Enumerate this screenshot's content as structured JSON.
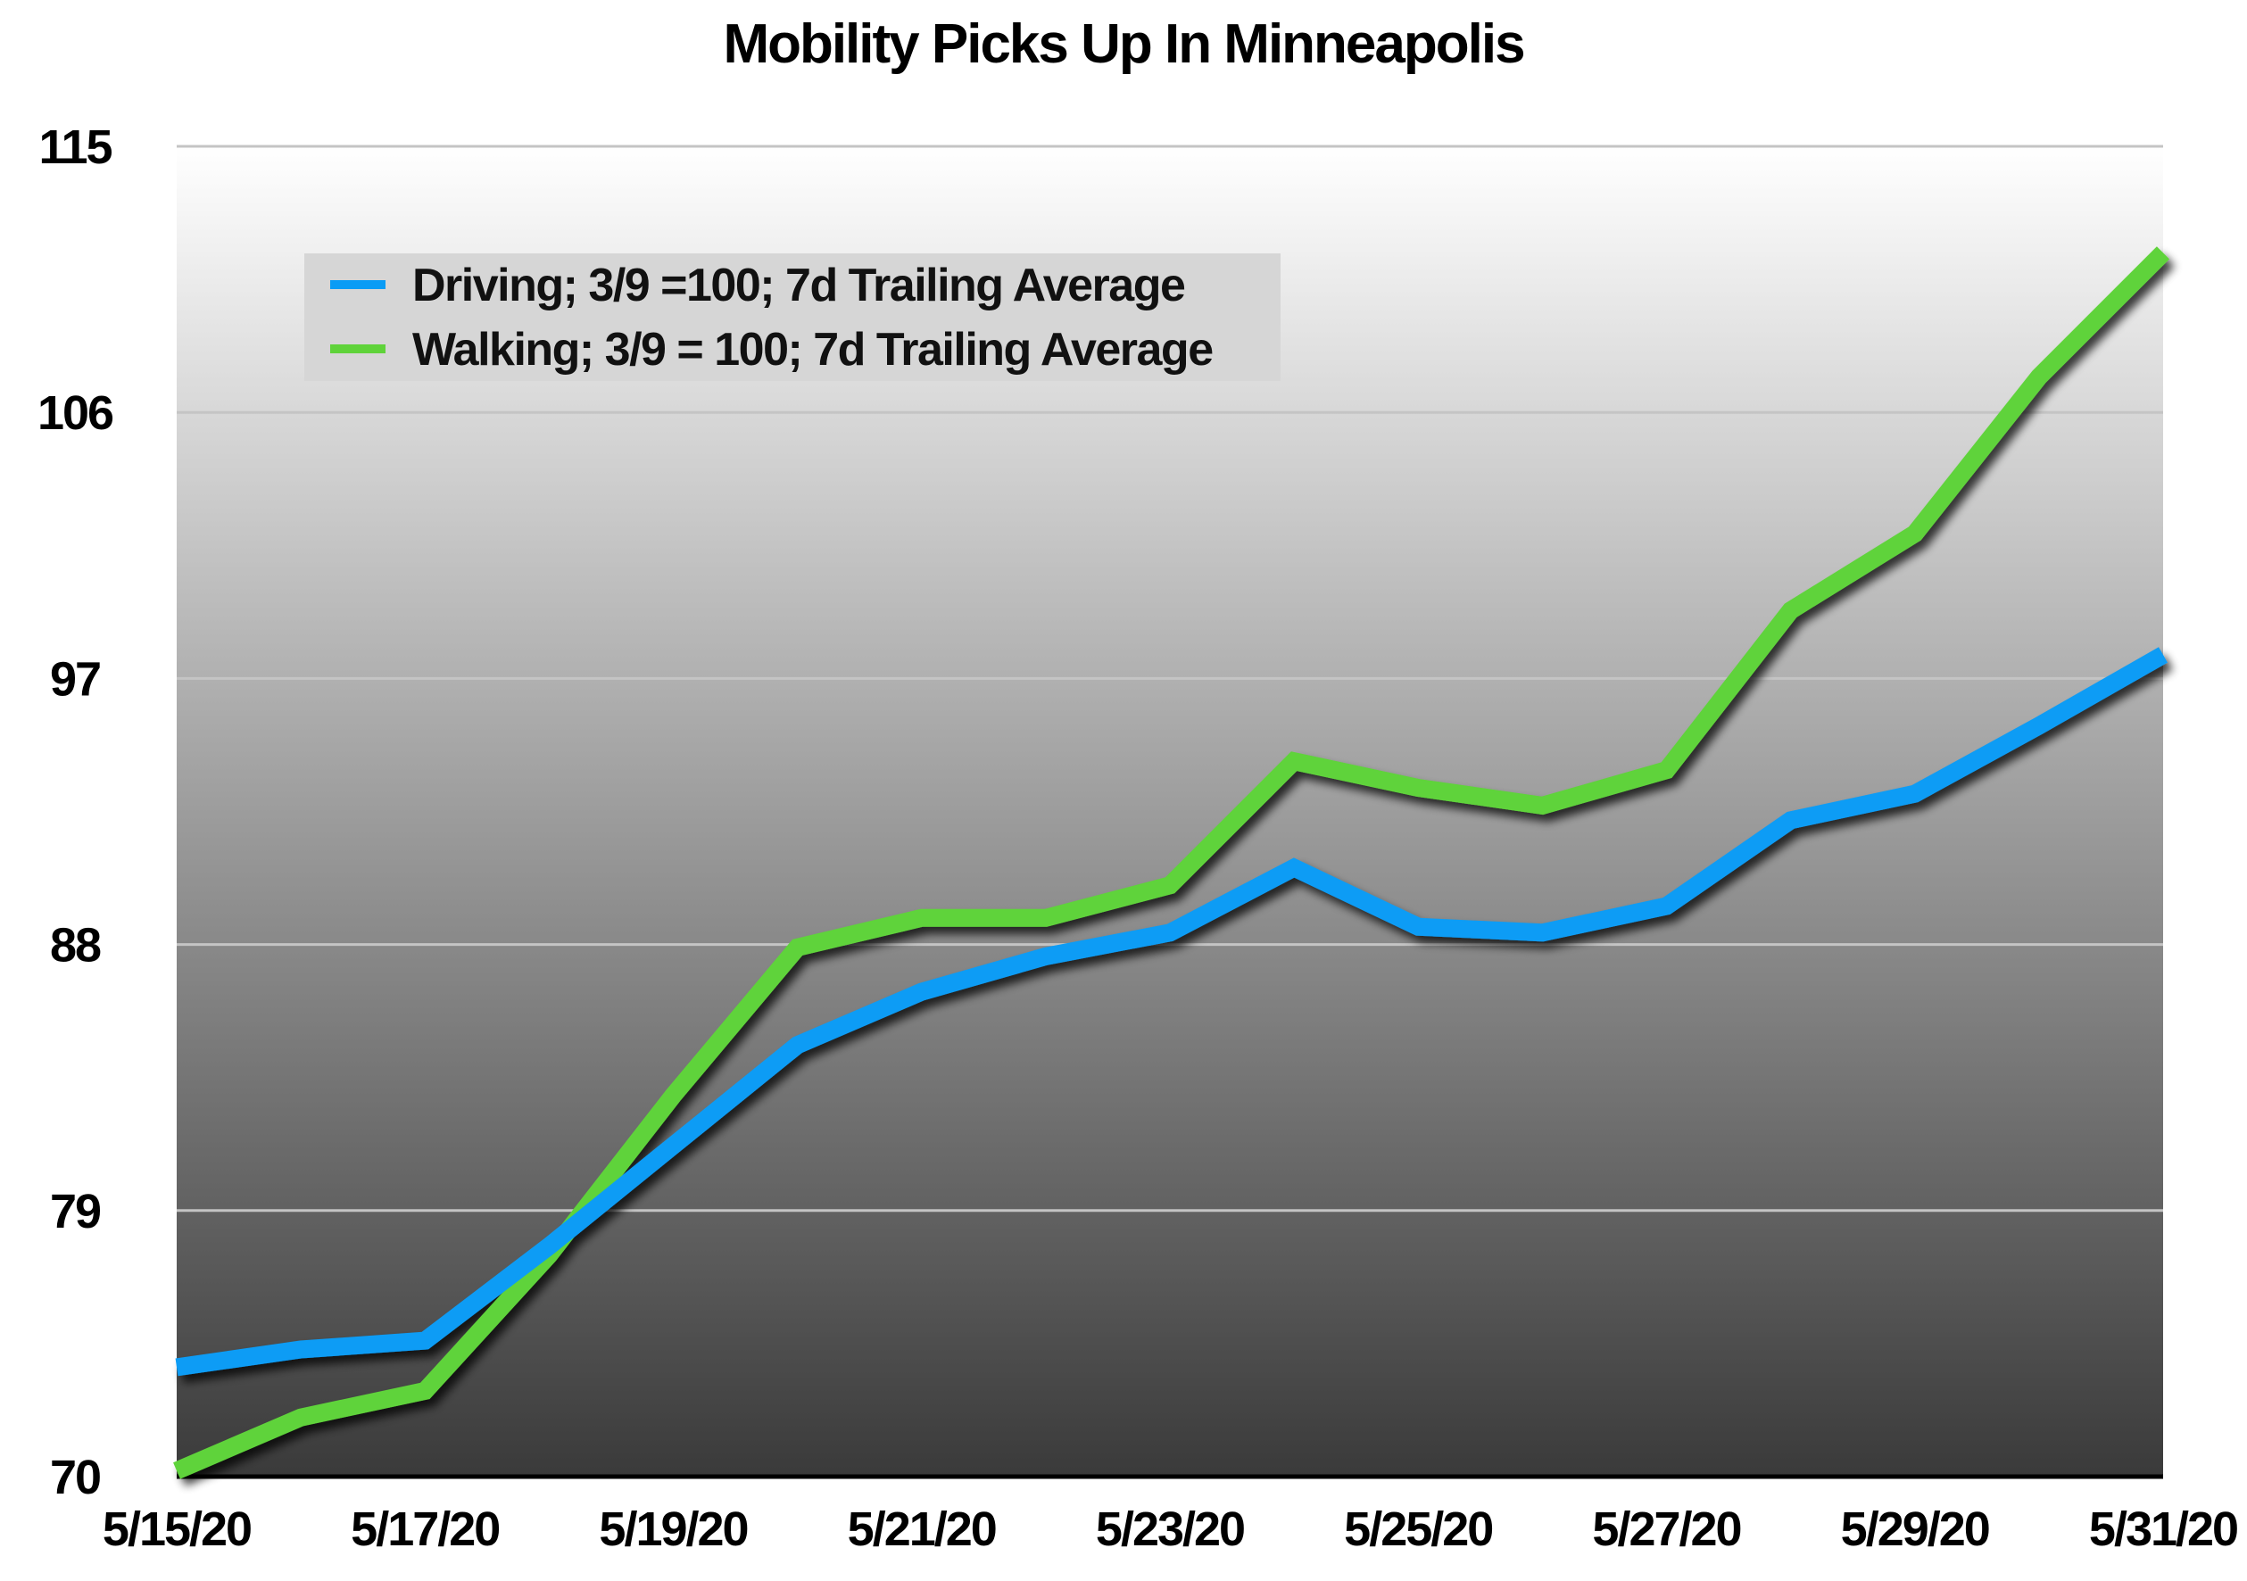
{
  "chart_data": {
    "type": "line",
    "title": "Mobility Picks Up In Minneapolis",
    "xlabel": "",
    "ylabel": "",
    "x": [
      "5/15/20",
      "5/16/20",
      "5/17/20",
      "5/18/20",
      "5/19/20",
      "5/20/20",
      "5/21/20",
      "5/22/20",
      "5/23/20",
      "5/24/20",
      "5/25/20",
      "5/26/20",
      "5/27/20",
      "5/28/20",
      "5/29/20",
      "5/30/20",
      "5/31/20"
    ],
    "x_tick_labels": [
      "5/15/20",
      "5/17/20",
      "5/19/20",
      "5/21/20",
      "5/23/20",
      "5/25/20",
      "5/27/20",
      "5/29/20",
      "5/31/20"
    ],
    "ylim": [
      70,
      115
    ],
    "y_ticks": [
      70,
      79,
      88,
      97,
      106,
      115
    ],
    "y_tick_labels": [
      "70",
      "79",
      "88",
      "97",
      "106",
      "115"
    ],
    "grid": true,
    "legend_position": "top-left",
    "series": [
      {
        "name": "Driving; 3/9 =100; 7d Trailing Average",
        "color": "#0a9cf5",
        "values": [
          73.7,
          74.3,
          74.6,
          77.8,
          81.2,
          84.6,
          86.4,
          87.6,
          88.4,
          90.6,
          88.6,
          88.4,
          89.3,
          92.2,
          93.1,
          95.4,
          97.8
        ]
      },
      {
        "name": "Walking; 3/9 = 100; 7d Trailing Average",
        "color": "#5fd33a",
        "values": [
          70.2,
          72.0,
          72.9,
          77.5,
          82.9,
          87.9,
          88.9,
          88.9,
          90.0,
          94.2,
          93.3,
          92.7,
          93.9,
          99.3,
          101.9,
          107.2,
          111.4
        ]
      }
    ]
  }
}
